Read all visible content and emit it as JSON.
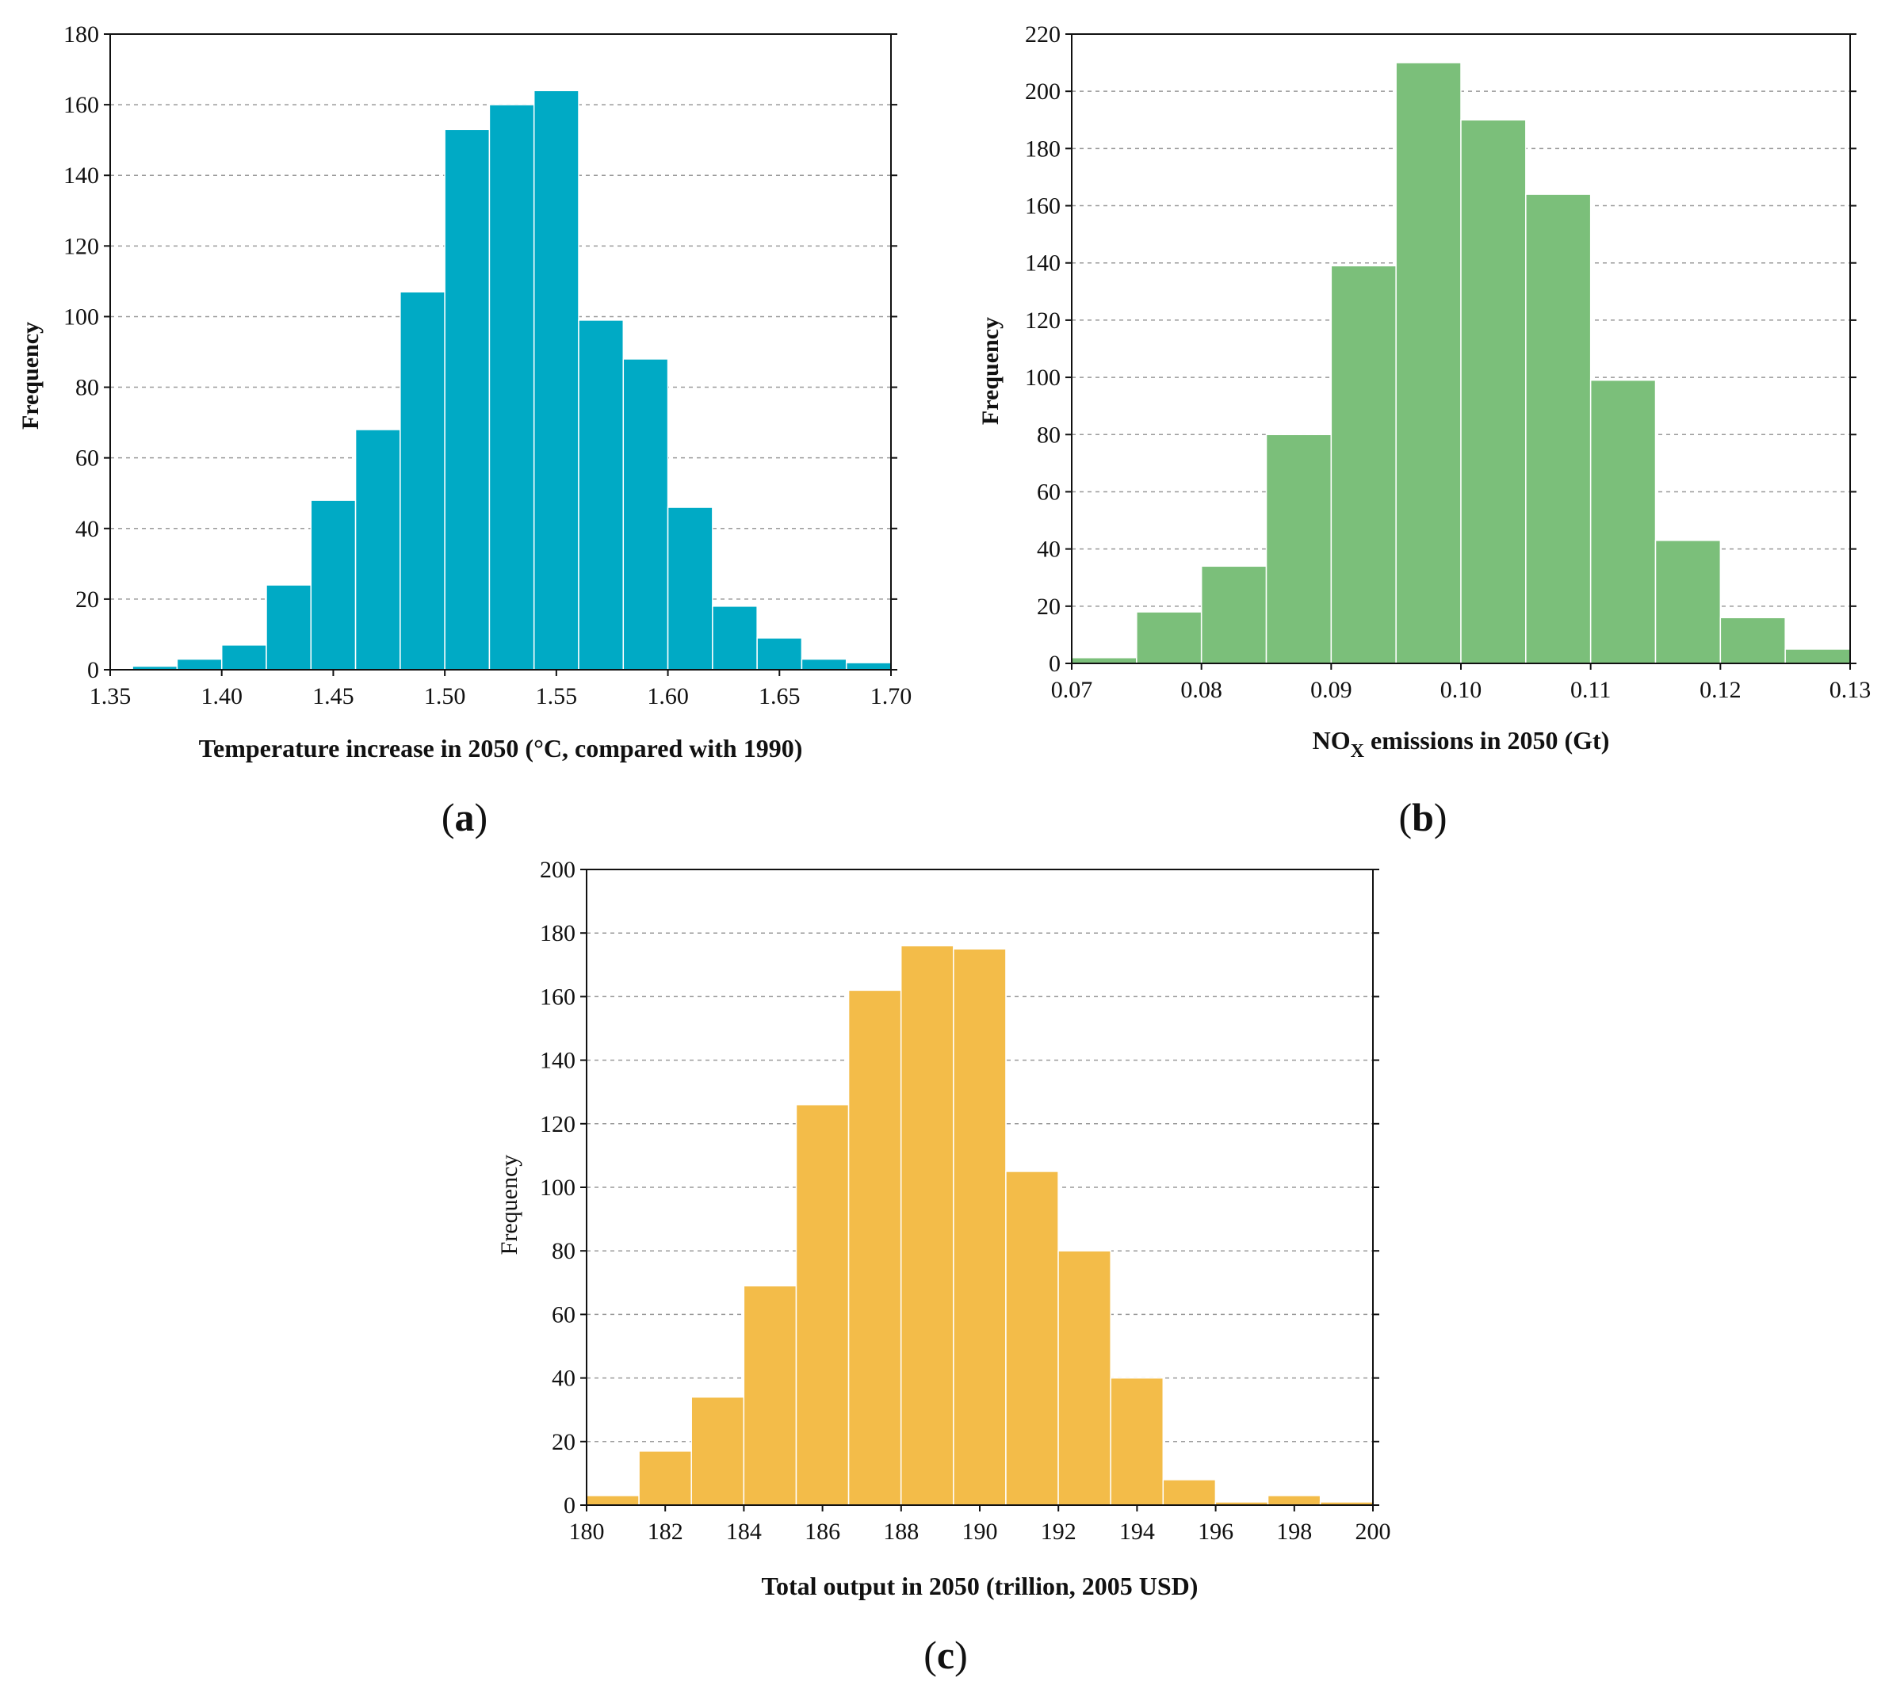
{
  "chart_data": [
    {
      "type": "bar",
      "panel_label": "(a)",
      "panel_letter": "a",
      "xlabel": "Temperature increase in 2050 (°C, compared with 1990)",
      "ylabel": "Frequency",
      "xlim": [
        1.35,
        1.7
      ],
      "ylim": [
        0,
        180
      ],
      "xticks": [
        "1.35",
        "1.40",
        "1.45",
        "1.50",
        "1.55",
        "1.60",
        "1.65",
        "1.70"
      ],
      "xtick_values": [
        1.35,
        1.4,
        1.45,
        1.5,
        1.55,
        1.6,
        1.65,
        1.7
      ],
      "yticks": [
        "0",
        "20",
        "40",
        "60",
        "80",
        "100",
        "120",
        "140",
        "160",
        "180"
      ],
      "ytick_values": [
        0,
        20,
        40,
        60,
        80,
        100,
        120,
        140,
        160,
        180
      ],
      "bin_start": 1.36,
      "bin_width": 0.02,
      "values": [
        1,
        3,
        7,
        24,
        48,
        68,
        107,
        153,
        160,
        164,
        99,
        88,
        46,
        18,
        9,
        3,
        2
      ],
      "color": "#00aac5",
      "grid": true
    },
    {
      "type": "bar",
      "panel_label": "(b)",
      "panel_letter": "b",
      "xlabel_main": "NO",
      "xlabel_sub": "X",
      "xlabel_rest": " emissions in 2050 (Gt)",
      "ylabel": "Frequency",
      "xlim": [
        0.07,
        0.13
      ],
      "ylim": [
        0,
        220
      ],
      "xticks": [
        "0.07",
        "0.08",
        "0.09",
        "0.10",
        "0.11",
        "0.12",
        "0.13"
      ],
      "xtick_values": [
        0.07,
        0.08,
        0.09,
        0.1,
        0.11,
        0.12,
        0.13
      ],
      "yticks": [
        "0",
        "20",
        "40",
        "60",
        "80",
        "100",
        "120",
        "140",
        "160",
        "180",
        "200",
        "220"
      ],
      "ytick_values": [
        0,
        20,
        40,
        60,
        80,
        100,
        120,
        140,
        160,
        180,
        200,
        220
      ],
      "bin_start": 0.07,
      "bin_width": 0.005,
      "values": [
        2,
        18,
        34,
        80,
        139,
        210,
        190,
        164,
        99,
        43,
        16,
        5
      ],
      "color": "#7bbf7a",
      "grid": true
    },
    {
      "type": "bar",
      "panel_label": "(c)",
      "panel_letter": "c",
      "xlabel": "Total output in 2050 (trillion, 2005 USD)",
      "ylabel": "Frequency",
      "xlim": [
        180,
        200
      ],
      "ylim": [
        0,
        200
      ],
      "xticks": [
        "180",
        "182",
        "184",
        "186",
        "188",
        "190",
        "192",
        "194",
        "196",
        "198",
        "200"
      ],
      "xtick_values": [
        180,
        182,
        184,
        186,
        188,
        190,
        192,
        194,
        196,
        198,
        200
      ],
      "yticks": [
        "0",
        "20",
        "40",
        "60",
        "80",
        "100",
        "120",
        "140",
        "160",
        "180",
        "200"
      ],
      "ytick_values": [
        0,
        20,
        40,
        60,
        80,
        100,
        120,
        140,
        160,
        180,
        200
      ],
      "bin_start": 180,
      "bin_width": 1.333,
      "values": [
        3,
        17,
        34,
        69,
        126,
        162,
        176,
        175,
        105,
        80,
        40,
        8,
        1,
        3,
        1
      ],
      "color": "#f3bc49",
      "grid": true
    }
  ]
}
